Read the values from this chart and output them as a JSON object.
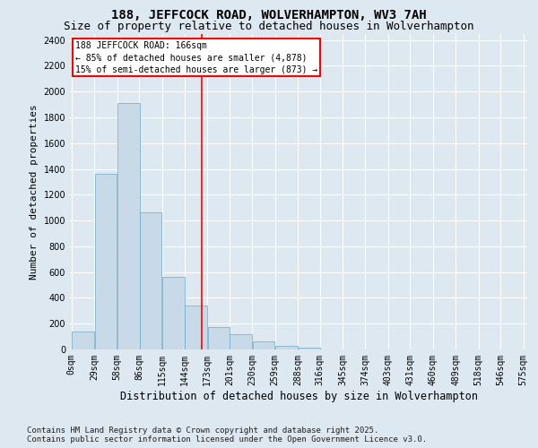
{
  "title": "188, JEFFCOCK ROAD, WOLVERHAMPTON, WV3 7AH",
  "subtitle": "Size of property relative to detached houses in Wolverhampton",
  "xlabel": "Distribution of detached houses by size in Wolverhampton",
  "ylabel": "Number of detached properties",
  "footer_line1": "Contains HM Land Registry data © Crown copyright and database right 2025.",
  "footer_line2": "Contains public sector information licensed under the Open Government Licence v3.0.",
  "bin_labels": [
    "0sqm",
    "29sqm",
    "58sqm",
    "86sqm",
    "115sqm",
    "144sqm",
    "173sqm",
    "201sqm",
    "230sqm",
    "259sqm",
    "288sqm",
    "316sqm",
    "345sqm",
    "374sqm",
    "403sqm",
    "431sqm",
    "460sqm",
    "489sqm",
    "518sqm",
    "546sqm",
    "575sqm"
  ],
  "bin_edges": [
    0,
    29,
    58,
    86,
    115,
    144,
    173,
    201,
    230,
    259,
    288,
    316,
    345,
    374,
    403,
    431,
    460,
    489,
    518,
    546,
    575
  ],
  "bar_heights": [
    140,
    1360,
    1910,
    1060,
    560,
    340,
    175,
    115,
    60,
    25,
    15,
    0,
    0,
    0,
    0,
    0,
    0,
    0,
    0,
    0
  ],
  "bar_color": "#c8d9e8",
  "bar_edge_color": "#6fa8c8",
  "property_line_x": 166,
  "annotation_title": "188 JEFFCOCK ROAD: 166sqm",
  "annotation_line1": "← 85% of detached houses are smaller (4,878)",
  "annotation_line2": "15% of semi-detached houses are larger (873) →",
  "annotation_box_color": "white",
  "annotation_box_edge": "red",
  "vline_color": "red",
  "ylim": [
    0,
    2450
  ],
  "yticks": [
    0,
    200,
    400,
    600,
    800,
    1000,
    1200,
    1400,
    1600,
    1800,
    2000,
    2200,
    2400
  ],
  "bg_color": "#dde8f0",
  "plot_bg_color": "#dde8f0",
  "grid_color": "white",
  "title_fontsize": 10,
  "subtitle_fontsize": 9,
  "xlabel_fontsize": 8.5,
  "ylabel_fontsize": 8,
  "tick_fontsize": 7,
  "footer_fontsize": 6.5
}
